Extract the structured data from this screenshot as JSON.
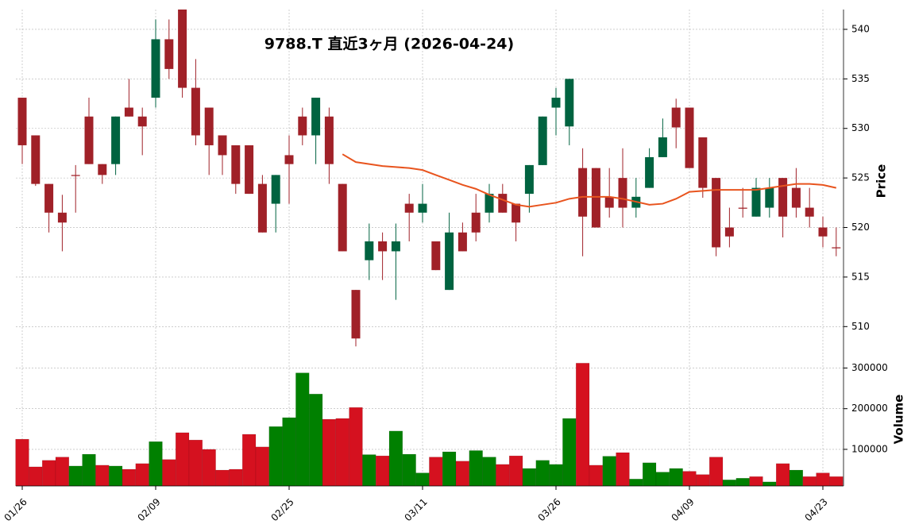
{
  "chart_data": {
    "type": "candlestick",
    "title": "9788.T  直近3ヶ月  (2026-04-24)",
    "categories": [
      "01/26",
      null,
      null,
      null,
      null,
      null,
      null,
      null,
      null,
      null,
      "02/09",
      null,
      null,
      null,
      null,
      null,
      null,
      null,
      null,
      null,
      "02/25",
      null,
      null,
      null,
      null,
      null,
      null,
      null,
      null,
      null,
      "03/11",
      null,
      null,
      null,
      null,
      null,
      null,
      null,
      null,
      null,
      "03/26",
      null,
      null,
      null,
      null,
      null,
      null,
      null,
      null,
      null,
      "04/09",
      null,
      null,
      null,
      null,
      null,
      null,
      null,
      null,
      null,
      "04/23",
      null
    ],
    "open": [
      533.1,
      529.3,
      524.4,
      521.5,
      525.3,
      531.2,
      526.4,
      526.4,
      532.1,
      531.2,
      533.1,
      539.0,
      542.0,
      534.1,
      532.1,
      529.3,
      528.3,
      528.3,
      524.4,
      522.4,
      527.3,
      531.2,
      529.3,
      531.2,
      524.4,
      513.7,
      516.7,
      518.6,
      517.6,
      522.4,
      521.5,
      518.6,
      513.7,
      519.5,
      521.5,
      521.5,
      523.4,
      522.4,
      523.4,
      526.3,
      532.1,
      530.2,
      526.0,
      526.0,
      523.1,
      525.0,
      522.0,
      524.0,
      527.1,
      532.1,
      532.1,
      529.1,
      525.0,
      520.0,
      522.0,
      521.1,
      522.0,
      525.0,
      524.0,
      522.0,
      520.0,
      518.0
    ],
    "high": [
      533.1,
      529.3,
      524.4,
      523.3,
      526.3,
      533.1,
      526.4,
      531.2,
      535.0,
      532.1,
      541.0,
      541.0,
      542.0,
      537.0,
      532.1,
      529.3,
      528.3,
      528.3,
      525.3,
      525.3,
      529.3,
      532.1,
      533.1,
      532.1,
      524.4,
      513.7,
      520.4,
      519.5,
      520.4,
      523.4,
      524.4,
      518.6,
      521.5,
      520.5,
      523.4,
      524.4,
      524.4,
      522.4,
      526.3,
      531.2,
      534.1,
      535.0,
      528.0,
      526.0,
      526.0,
      528.0,
      525.0,
      528.0,
      531.0,
      533.0,
      532.1,
      529.1,
      525.0,
      522.0,
      524.0,
      525.0,
      525.0,
      525.0,
      526.0,
      524.0,
      521.1,
      520.0
    ],
    "low": [
      526.4,
      524.2,
      519.5,
      517.6,
      521.5,
      526.4,
      524.4,
      525.3,
      531.2,
      527.3,
      532.1,
      535.0,
      533.1,
      528.3,
      525.3,
      525.3,
      523.4,
      523.4,
      519.5,
      519.5,
      522.4,
      528.3,
      526.4,
      524.4,
      517.6,
      508.0,
      514.7,
      514.7,
      512.7,
      518.6,
      520.5,
      515.7,
      513.7,
      517.6,
      518.6,
      520.5,
      521.5,
      518.6,
      521.5,
      526.3,
      529.3,
      528.3,
      517.1,
      520.0,
      521.0,
      520.0,
      521.0,
      524.0,
      527.1,
      528.0,
      526.0,
      523.0,
      517.1,
      518.0,
      521.0,
      521.1,
      521.0,
      519.0,
      521.0,
      520.0,
      518.0,
      517.1
    ],
    "close": [
      528.3,
      524.4,
      521.5,
      520.5,
      525.2,
      526.4,
      525.3,
      531.2,
      531.2,
      530.2,
      539.0,
      536.0,
      534.1,
      529.3,
      528.3,
      527.3,
      524.4,
      523.4,
      519.5,
      525.3,
      526.4,
      529.3,
      533.1,
      526.4,
      517.6,
      508.8,
      518.6,
      517.6,
      518.6,
      521.5,
      522.4,
      515.7,
      519.5,
      517.6,
      519.5,
      523.4,
      521.5,
      520.5,
      526.3,
      531.2,
      533.1,
      535.0,
      521.1,
      520.0,
      522.0,
      522.0,
      523.1,
      527.1,
      529.1,
      530.1,
      526.0,
      524.0,
      518.0,
      519.1,
      521.9,
      524.0,
      524.0,
      521.1,
      522.0,
      521.1,
      519.1,
      517.9
    ],
    "up_color": "#006340",
    "down_color": "#a02128",
    "ylim": [
      507.7,
      542.0
    ],
    "yticks": [
      510,
      515,
      520,
      525,
      530,
      535,
      540
    ],
    "ylabel": "Price",
    "grid": true,
    "moving_average": {
      "color": "#e8541e",
      "values": [
        null,
        null,
        null,
        null,
        null,
        null,
        null,
        null,
        null,
        null,
        null,
        null,
        null,
        null,
        null,
        null,
        null,
        null,
        null,
        null,
        null,
        null,
        null,
        null,
        527.4,
        526.6,
        526.4,
        526.2,
        526.1,
        526.0,
        525.8,
        525.3,
        524.8,
        524.3,
        523.9,
        523.3,
        522.8,
        522.3,
        522.1,
        522.3,
        522.5,
        522.9,
        523.1,
        523.1,
        523.1,
        522.9,
        522.6,
        522.3,
        522.4,
        522.9,
        523.6,
        523.7,
        523.8,
        523.8,
        523.8,
        523.8,
        524.0,
        524.2,
        524.4,
        524.4,
        524.3,
        524.0
      ]
    },
    "volume": {
      "values": [
        125000,
        57000,
        73000,
        81000,
        59000,
        88000,
        61000,
        59000,
        51000,
        65000,
        119000,
        75000,
        141000,
        123000,
        100000,
        49000,
        51000,
        137000,
        106000,
        156000,
        178000,
        288000,
        236000,
        174000,
        176000,
        203000,
        87000,
        84000,
        145000,
        88000,
        42000,
        81000,
        94000,
        71000,
        97000,
        81000,
        63000,
        84000,
        53000,
        73000,
        63000,
        176000,
        312000,
        61000,
        83000,
        92000,
        27000,
        67000,
        44000,
        53000,
        46000,
        38000,
        81000,
        25000,
        29000,
        33000,
        20000,
        65000,
        49000,
        33000,
        42000,
        33000
      ],
      "colors": [
        "#d5111f",
        "#d5111f",
        "#d5111f",
        "#d5111f",
        "#008000",
        "#008000",
        "#d5111f",
        "#008000",
        "#d5111f",
        "#d5111f",
        "#008000",
        "#d5111f",
        "#d5111f",
        "#d5111f",
        "#d5111f",
        "#d5111f",
        "#d5111f",
        "#d5111f",
        "#d5111f",
        "#008000",
        "#008000",
        "#008000",
        "#008000",
        "#d5111f",
        "#d5111f",
        "#d5111f",
        "#008000",
        "#d5111f",
        "#008000",
        "#008000",
        "#008000",
        "#d5111f",
        "#008000",
        "#d5111f",
        "#008000",
        "#008000",
        "#d5111f",
        "#d5111f",
        "#008000",
        "#008000",
        "#008000",
        "#008000",
        "#d5111f",
        "#d5111f",
        "#008000",
        "#d5111f",
        "#008000",
        "#008000",
        "#008000",
        "#008000",
        "#d5111f",
        "#d5111f",
        "#d5111f",
        "#008000",
        "#008000",
        "#d5111f",
        "#008000",
        "#d5111f",
        "#008000",
        "#d5111f",
        "#d5111f",
        "#d5111f"
      ],
      "ylim": [
        10000,
        340000
      ],
      "yticks": [
        100000,
        200000,
        300000
      ],
      "ylabel": "Volume"
    }
  }
}
